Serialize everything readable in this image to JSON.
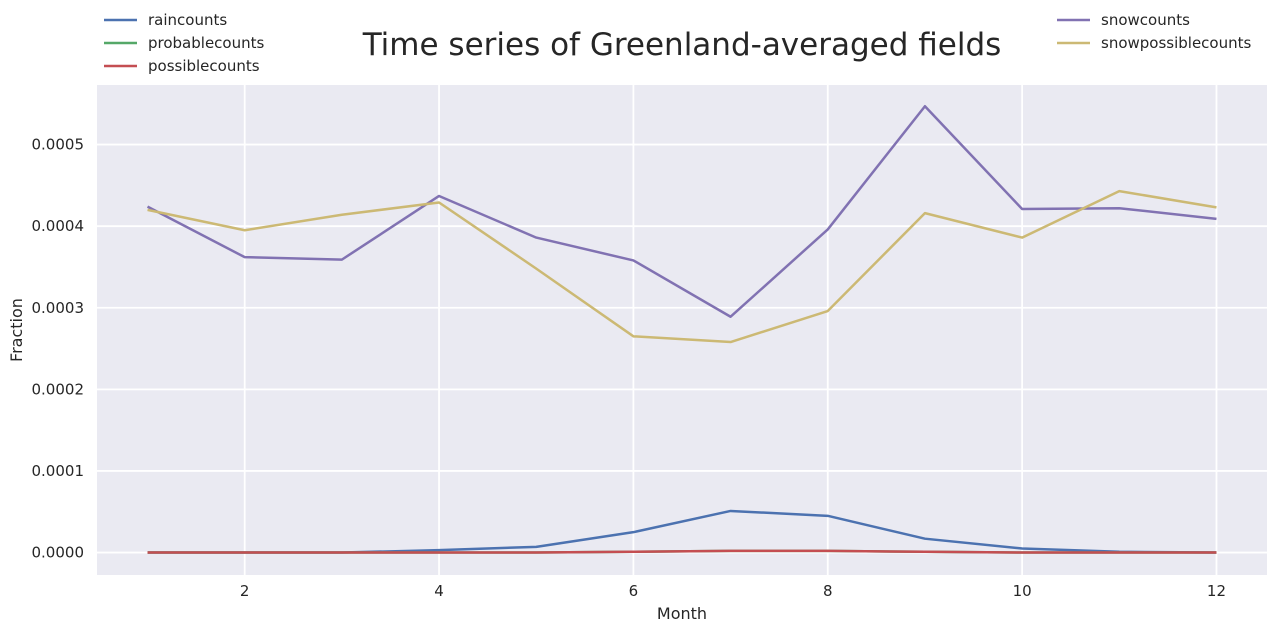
{
  "chart_data": {
    "type": "line",
    "title": "Time series of Greenland-averaged fields",
    "xlabel": "Month",
    "ylabel": "Fraction",
    "xlim": [
      0.48,
      12.52
    ],
    "ylim": [
      -2.75e-05,
      0.000573
    ],
    "x_ticks": [
      2,
      4,
      6,
      8,
      10,
      12
    ],
    "y_ticks": [
      0.0,
      0.0001,
      0.0002,
      0.0003,
      0.0004,
      0.0005
    ],
    "y_tick_labels": [
      "0.0000",
      "0.0001",
      "0.0002",
      "0.0003",
      "0.0004",
      "0.0005"
    ],
    "grid": true,
    "legend_placement": "above plot, split left and right",
    "x": [
      1,
      2,
      3,
      4,
      5,
      6,
      7,
      8,
      9,
      10,
      11,
      12
    ],
    "series": [
      {
        "name": "raincounts",
        "color": "#4c72b0",
        "legend_group": "left",
        "values": [
          0.0,
          0.0,
          0.0,
          3e-06,
          7e-06,
          2.5e-05,
          5.1e-05,
          4.5e-05,
          1.7e-05,
          5e-06,
          1e-06,
          0.0
        ]
      },
      {
        "name": "probablecounts",
        "color": "#55a868",
        "legend_group": "left",
        "values": [
          0.0,
          0.0,
          0.0,
          0.0,
          0.0,
          1e-06,
          2e-06,
          2e-06,
          1e-06,
          0.0,
          0.0,
          0.0
        ]
      },
      {
        "name": "possiblecounts",
        "color": "#c44e52",
        "legend_group": "left",
        "values": [
          0.0,
          0.0,
          0.0,
          0.0,
          0.0,
          1e-06,
          2e-06,
          2e-06,
          1e-06,
          0.0,
          0.0,
          0.0
        ]
      },
      {
        "name": "snowcounts",
        "color": "#8172b2",
        "legend_group": "right",
        "values": [
          0.000424,
          0.000362,
          0.000359,
          0.000437,
          0.000386,
          0.000358,
          0.000289,
          0.000396,
          0.000547,
          0.000421,
          0.000422,
          0.000409
        ]
      },
      {
        "name": "snowpossiblecounts",
        "color": "#ccb974",
        "legend_group": "right",
        "values": [
          0.00042,
          0.000395,
          0.000414,
          0.000429,
          0.000348,
          0.000265,
          0.000258,
          0.000296,
          0.000416,
          0.000386,
          0.000443,
          0.000423
        ]
      }
    ]
  }
}
